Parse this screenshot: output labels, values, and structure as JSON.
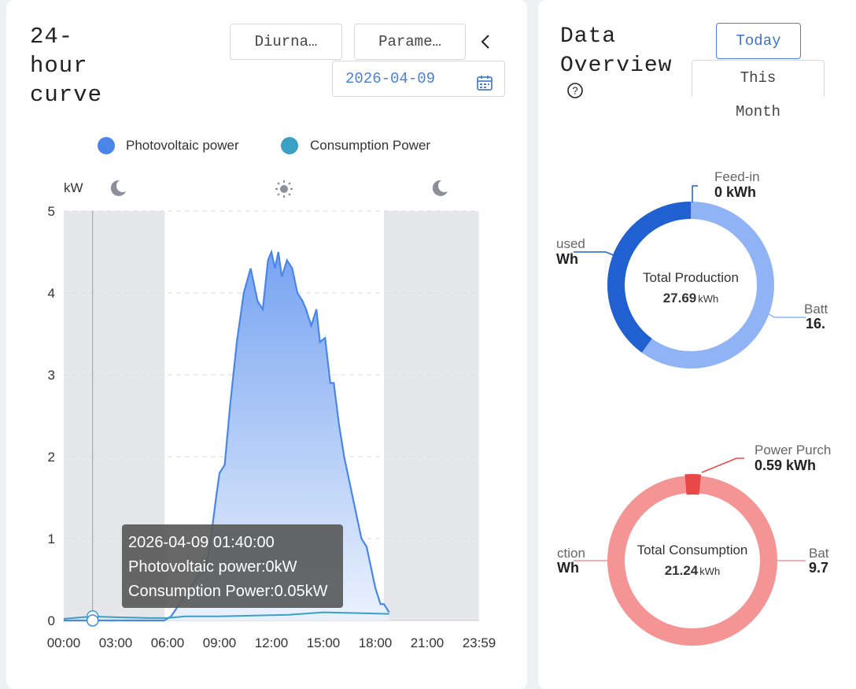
{
  "curve_panel": {
    "title": "24-hour curve",
    "title_lines": [
      "24-",
      "hour",
      "curve"
    ],
    "mode_select": "Diurna…",
    "param_select": "Parame…",
    "back_icon": "chevron-left-icon",
    "date": "2026-04-09",
    "calendar_icon": "calendar-icon",
    "legend": [
      {
        "name": "Photovoltaic power",
        "color": "#4a86e8"
      },
      {
        "name": "Consumption Power",
        "color": "#3aa0c4"
      }
    ],
    "unit": "kW",
    "icons": [
      "moon-icon",
      "sun-icon",
      "moon-icon"
    ],
    "tooltip": {
      "time": "2026-04-09 01:40:00",
      "pv": "Photovoltaic power:0kW",
      "consumption": "Consumption Power:0.05kW"
    }
  },
  "chart_data": {
    "type": "area",
    "xlabel": "",
    "ylabel": "kW",
    "ylim": [
      0,
      5
    ],
    "x_ticks": [
      "00:00",
      "03:00",
      "06:00",
      "09:00",
      "12:00",
      "15:00",
      "18:00",
      "21:00",
      "23:59"
    ],
    "y_ticks": [
      "0",
      "1",
      "2",
      "3",
      "4",
      "5"
    ],
    "night_bands": [
      [
        "00:00",
        "05:50"
      ],
      [
        "18:30",
        "23:59"
      ]
    ],
    "series": [
      {
        "name": "Photovoltaic power",
        "color": "#4a86e8",
        "points": [
          [
            0,
            0
          ],
          [
            3,
            0
          ],
          [
            5.8,
            0
          ],
          [
            6.2,
            0.05
          ],
          [
            7,
            0.3
          ],
          [
            7.8,
            0.55
          ],
          [
            8.2,
            0.6
          ],
          [
            8.5,
            1.0
          ],
          [
            8.8,
            1.5
          ],
          [
            9,
            1.8
          ],
          [
            9.3,
            1.9
          ],
          [
            9.6,
            2.6
          ],
          [
            10,
            3.4
          ],
          [
            10.4,
            4.0
          ],
          [
            10.8,
            4.3
          ],
          [
            11.2,
            3.9
          ],
          [
            11.5,
            3.8
          ],
          [
            11.8,
            4.4
          ],
          [
            12,
            4.5
          ],
          [
            12.2,
            4.3
          ],
          [
            12.4,
            4.5
          ],
          [
            12.6,
            4.2
          ],
          [
            12.9,
            4.4
          ],
          [
            13.2,
            4.3
          ],
          [
            13.5,
            4.0
          ],
          [
            13.8,
            3.9
          ],
          [
            14,
            3.8
          ],
          [
            14.3,
            3.6
          ],
          [
            14.6,
            3.8
          ],
          [
            14.8,
            3.4
          ],
          [
            15.1,
            3.45
          ],
          [
            15.4,
            2.9
          ],
          [
            15.6,
            2.9
          ],
          [
            15.9,
            2.4
          ],
          [
            16.2,
            2.0
          ],
          [
            16.5,
            1.7
          ],
          [
            16.8,
            1.4
          ],
          [
            17.2,
            1.0
          ],
          [
            17.5,
            0.9
          ],
          [
            17.8,
            0.6
          ],
          [
            18,
            0.4
          ],
          [
            18.3,
            0.2
          ],
          [
            18.5,
            0.2
          ],
          [
            18.8,
            0.1
          ]
        ]
      },
      {
        "name": "Consumption Power",
        "color": "#3aa0c4",
        "points": [
          [
            0,
            0.02
          ],
          [
            1.7,
            0.05
          ],
          [
            3,
            0.04
          ],
          [
            5,
            0.03
          ],
          [
            6,
            0.03
          ],
          [
            7,
            0.05
          ],
          [
            9,
            0.05
          ],
          [
            11,
            0.06
          ],
          [
            13,
            0.07
          ],
          [
            15,
            0.1
          ],
          [
            17,
            0.09
          ],
          [
            18.8,
            0.08
          ]
        ]
      }
    ]
  },
  "overview_panel": {
    "title_lines": [
      "Data",
      "Overview"
    ],
    "help_icon": "help-circle-icon",
    "tab_today": "Today",
    "tab_month_line1": "This",
    "tab_month_line2": "Month",
    "production": {
      "center_label": "Total Production",
      "center_value": "27.69",
      "center_unit": "kWh",
      "feed_in_label": "Feed-in",
      "feed_in_value": "0 kWh",
      "left_label": "used",
      "left_value": "Wh",
      "right_label": "Batt",
      "right_value": "16.",
      "colors": {
        "self_used": "#2060d0",
        "battery": "#8fb3f5"
      },
      "share_self_used": 0.4
    },
    "consumption": {
      "center_label": "Total Consumption",
      "center_value": "21.24",
      "center_unit": "kWh",
      "purchase_label": "Power Purch",
      "purchase_value": "0.59 kWh",
      "left_label": "ction",
      "left_value": "Wh",
      "right_label": "Bat",
      "right_value": "9.7",
      "colors": {
        "main": "#f49494",
        "purchase": "#e84848"
      },
      "share_purchase": 0.03
    }
  }
}
